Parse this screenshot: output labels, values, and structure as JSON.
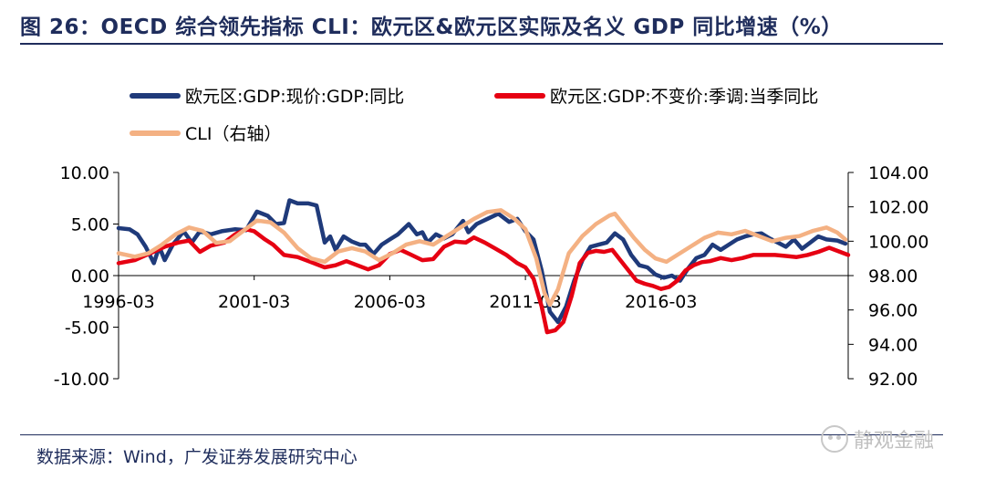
{
  "header": {
    "title": "图 26：OECD 综合领先指标 CLI：欧元区&欧元区实际及名义 GDP 同比增速（%）"
  },
  "footer": {
    "source": "数据来源：Wind，广发证券发展研究中心",
    "watermark": "静观金融"
  },
  "chart_data": {
    "type": "line",
    "x_ticks": [
      "1996-03",
      "2001-03",
      "2006-03",
      "2011-03",
      "2016-03"
    ],
    "y_left": {
      "min": -10,
      "max": 10,
      "ticks": [
        "10.00",
        "5.00",
        "0.00",
        "-5.00",
        "-10.00"
      ]
    },
    "y_right": {
      "min": 92,
      "max": 104,
      "ticks": [
        "104.00",
        "102.00",
        "100.00",
        "98.00",
        "96.00",
        "94.00",
        "92.00"
      ]
    },
    "legend_position": "top",
    "series": [
      {
        "name": "欧元区:GDP:现价:GDP:同比",
        "color": "#1f3a7a",
        "axis": "left",
        "points": [
          [
            1996.2,
            4.6
          ],
          [
            1996.6,
            4.5
          ],
          [
            1996.9,
            4.0
          ],
          [
            1997.2,
            2.8
          ],
          [
            1997.5,
            1.2
          ],
          [
            1997.7,
            2.8
          ],
          [
            1997.9,
            1.5
          ],
          [
            1998.2,
            3.0
          ],
          [
            1998.6,
            4.3
          ],
          [
            1998.9,
            3.2
          ],
          [
            1999.2,
            4.3
          ],
          [
            1999.6,
            4.0
          ],
          [
            2000.0,
            4.3
          ],
          [
            2000.5,
            4.5
          ],
          [
            2000.9,
            4.4
          ],
          [
            2001.3,
            6.2
          ],
          [
            2001.7,
            5.8
          ],
          [
            2002.0,
            5.0
          ],
          [
            2002.3,
            5.1
          ],
          [
            2002.5,
            7.3
          ],
          [
            2002.8,
            7.0
          ],
          [
            2003.2,
            7.0
          ],
          [
            2003.5,
            6.8
          ],
          [
            2003.8,
            3.2
          ],
          [
            2004.0,
            3.8
          ],
          [
            2004.2,
            2.5
          ],
          [
            2004.5,
            3.8
          ],
          [
            2004.8,
            3.3
          ],
          [
            2005.1,
            3.0
          ],
          [
            2005.3,
            3.0
          ],
          [
            2005.6,
            2.1
          ],
          [
            2005.9,
            3.0
          ],
          [
            2006.2,
            3.5
          ],
          [
            2006.5,
            4.0
          ],
          [
            2006.9,
            5.0
          ],
          [
            2007.2,
            4.0
          ],
          [
            2007.4,
            4.2
          ],
          [
            2007.6,
            3.2
          ],
          [
            2007.9,
            4.0
          ],
          [
            2008.2,
            3.6
          ],
          [
            2008.5,
            4.0
          ],
          [
            2008.9,
            5.3
          ],
          [
            2009.1,
            4.2
          ],
          [
            2009.4,
            5.0
          ],
          [
            2009.8,
            5.5
          ],
          [
            2010.2,
            6.0
          ],
          [
            2010.6,
            5.2
          ],
          [
            2010.9,
            5.5
          ],
          [
            2011.2,
            4.3
          ],
          [
            2011.5,
            3.5
          ],
          [
            2011.8,
            0.5
          ],
          [
            2012.1,
            -3.5
          ],
          [
            2012.4,
            -4.5
          ],
          [
            2012.7,
            -3.0
          ],
          [
            2013.0,
            -0.5
          ],
          [
            2013.3,
            1.5
          ],
          [
            2013.6,
            2.8
          ],
          [
            2013.9,
            3.0
          ],
          [
            2014.2,
            3.2
          ],
          [
            2014.5,
            4.1
          ],
          [
            2014.8,
            3.5
          ],
          [
            2015.1,
            2.0
          ],
          [
            2015.4,
            1.0
          ],
          [
            2015.7,
            0.8
          ],
          [
            2016.0,
            0.1
          ],
          [
            2016.3,
            -0.2
          ],
          [
            2016.6,
            0.0
          ],
          [
            2016.9,
            -0.5
          ],
          [
            2017.2,
            0.7
          ],
          [
            2017.5,
            1.7
          ],
          [
            2017.8,
            2.0
          ],
          [
            2018.1,
            3.0
          ],
          [
            2018.4,
            2.5
          ],
          [
            2018.7,
            3.0
          ],
          [
            2019.0,
            3.5
          ],
          [
            2019.3,
            3.8
          ],
          [
            2019.6,
            4.0
          ],
          [
            2019.9,
            4.1
          ],
          [
            2020.2,
            3.6
          ],
          [
            2020.5,
            3.2
          ],
          [
            2020.8,
            2.8
          ],
          [
            2021.1,
            3.5
          ],
          [
            2021.4,
            2.6
          ],
          [
            2021.7,
            3.2
          ],
          [
            2022.0,
            3.8
          ],
          [
            2022.3,
            3.5
          ],
          [
            2022.7,
            3.4
          ],
          [
            2023.0,
            3.1
          ]
        ]
      },
      {
        "name": "欧元区:GDP:不变价:季调:当季同比",
        "color": "#e60012",
        "axis": "left",
        "points": [
          [
            1996.2,
            1.2
          ],
          [
            1996.8,
            1.5
          ],
          [
            1997.4,
            2.2
          ],
          [
            1997.9,
            2.8
          ],
          [
            1998.4,
            3.2
          ],
          [
            1998.8,
            3.4
          ],
          [
            1999.2,
            2.3
          ],
          [
            1999.6,
            2.9
          ],
          [
            2000.1,
            3.2
          ],
          [
            2000.5,
            4.0
          ],
          [
            2000.9,
            4.5
          ],
          [
            2001.2,
            4.3
          ],
          [
            2001.6,
            3.5
          ],
          [
            2001.9,
            3.0
          ],
          [
            2002.3,
            2.0
          ],
          [
            2002.8,
            1.8
          ],
          [
            2003.3,
            1.3
          ],
          [
            2003.8,
            0.8
          ],
          [
            2004.2,
            1.0
          ],
          [
            2004.6,
            1.4
          ],
          [
            2005.0,
            1.0
          ],
          [
            2005.4,
            0.6
          ],
          [
            2005.8,
            1.0
          ],
          [
            2006.2,
            2.1
          ],
          [
            2006.6,
            2.5
          ],
          [
            2007.0,
            2.0
          ],
          [
            2007.4,
            1.5
          ],
          [
            2007.8,
            1.6
          ],
          [
            2008.2,
            2.8
          ],
          [
            2008.6,
            3.3
          ],
          [
            2009.0,
            3.2
          ],
          [
            2009.3,
            3.7
          ],
          [
            2009.7,
            3.2
          ],
          [
            2010.1,
            2.6
          ],
          [
            2010.5,
            2.0
          ],
          [
            2010.9,
            1.2
          ],
          [
            2011.2,
            0.8
          ],
          [
            2011.5,
            -0.3
          ],
          [
            2011.8,
            -3.0
          ],
          [
            2012.0,
            -5.5
          ],
          [
            2012.3,
            -5.3
          ],
          [
            2012.6,
            -4.5
          ],
          [
            2012.9,
            -2.0
          ],
          [
            2013.2,
            1.2
          ],
          [
            2013.5,
            2.2
          ],
          [
            2013.8,
            2.4
          ],
          [
            2014.1,
            2.3
          ],
          [
            2014.4,
            2.5
          ],
          [
            2014.7,
            1.5
          ],
          [
            2015.0,
            0.5
          ],
          [
            2015.3,
            -0.5
          ],
          [
            2015.6,
            -0.8
          ],
          [
            2015.9,
            -1.0
          ],
          [
            2016.2,
            -1.3
          ],
          [
            2016.5,
            -1.1
          ],
          [
            2016.8,
            -0.5
          ],
          [
            2017.1,
            0.5
          ],
          [
            2017.4,
            1.0
          ],
          [
            2017.7,
            1.3
          ],
          [
            2018.0,
            1.4
          ],
          [
            2018.4,
            1.7
          ],
          [
            2018.8,
            1.5
          ],
          [
            2019.2,
            1.7
          ],
          [
            2019.6,
            2.0
          ],
          [
            2020.0,
            2.0
          ],
          [
            2020.4,
            2.0
          ],
          [
            2020.8,
            1.9
          ],
          [
            2021.2,
            1.8
          ],
          [
            2021.6,
            2.0
          ],
          [
            2022.0,
            2.3
          ],
          [
            2022.4,
            2.7
          ],
          [
            2022.8,
            2.3
          ],
          [
            2023.1,
            2.0
          ]
        ]
      },
      {
        "name": "CLI（右轴）",
        "color": "#f4b183",
        "axis": "right",
        "points": [
          [
            1996.2,
            99.3
          ],
          [
            1996.8,
            99.1
          ],
          [
            1997.3,
            99.3
          ],
          [
            1997.8,
            99.8
          ],
          [
            1998.3,
            100.4
          ],
          [
            1998.8,
            100.8
          ],
          [
            1999.3,
            100.6
          ],
          [
            1999.8,
            99.9
          ],
          [
            2000.3,
            100.0
          ],
          [
            2000.8,
            100.6
          ],
          [
            2001.3,
            101.2
          ],
          [
            2001.8,
            101.1
          ],
          [
            2002.3,
            100.5
          ],
          [
            2002.8,
            99.6
          ],
          [
            2003.3,
            99.0
          ],
          [
            2003.8,
            98.8
          ],
          [
            2004.3,
            99.4
          ],
          [
            2004.8,
            99.6
          ],
          [
            2005.3,
            99.4
          ],
          [
            2005.8,
            98.9
          ],
          [
            2006.3,
            99.3
          ],
          [
            2006.8,
            99.8
          ],
          [
            2007.3,
            100.0
          ],
          [
            2007.8,
            99.8
          ],
          [
            2008.3,
            100.3
          ],
          [
            2008.8,
            100.8
          ],
          [
            2009.3,
            101.3
          ],
          [
            2009.8,
            101.7
          ],
          [
            2010.3,
            101.8
          ],
          [
            2010.8,
            101.3
          ],
          [
            2011.2,
            100.7
          ],
          [
            2011.6,
            99.0
          ],
          [
            2011.9,
            97.0
          ],
          [
            2012.1,
            96.3
          ],
          [
            2012.4,
            97.2
          ],
          [
            2012.8,
            99.3
          ],
          [
            2013.3,
            100.3
          ],
          [
            2013.8,
            101.0
          ],
          [
            2014.3,
            101.5
          ],
          [
            2014.5,
            101.6
          ],
          [
            2014.8,
            101.0
          ],
          [
            2015.2,
            100.2
          ],
          [
            2015.6,
            99.5
          ],
          [
            2016.0,
            99.0
          ],
          [
            2016.4,
            98.8
          ],
          [
            2016.8,
            99.2
          ],
          [
            2017.3,
            99.7
          ],
          [
            2017.8,
            100.2
          ],
          [
            2018.3,
            100.5
          ],
          [
            2018.8,
            100.4
          ],
          [
            2019.3,
            100.6
          ],
          [
            2019.8,
            100.3
          ],
          [
            2020.3,
            100.0
          ],
          [
            2020.8,
            100.2
          ],
          [
            2021.3,
            100.3
          ],
          [
            2021.8,
            100.6
          ],
          [
            2022.3,
            100.8
          ],
          [
            2022.7,
            100.5
          ],
          [
            2023.0,
            100.1
          ]
        ]
      }
    ]
  }
}
